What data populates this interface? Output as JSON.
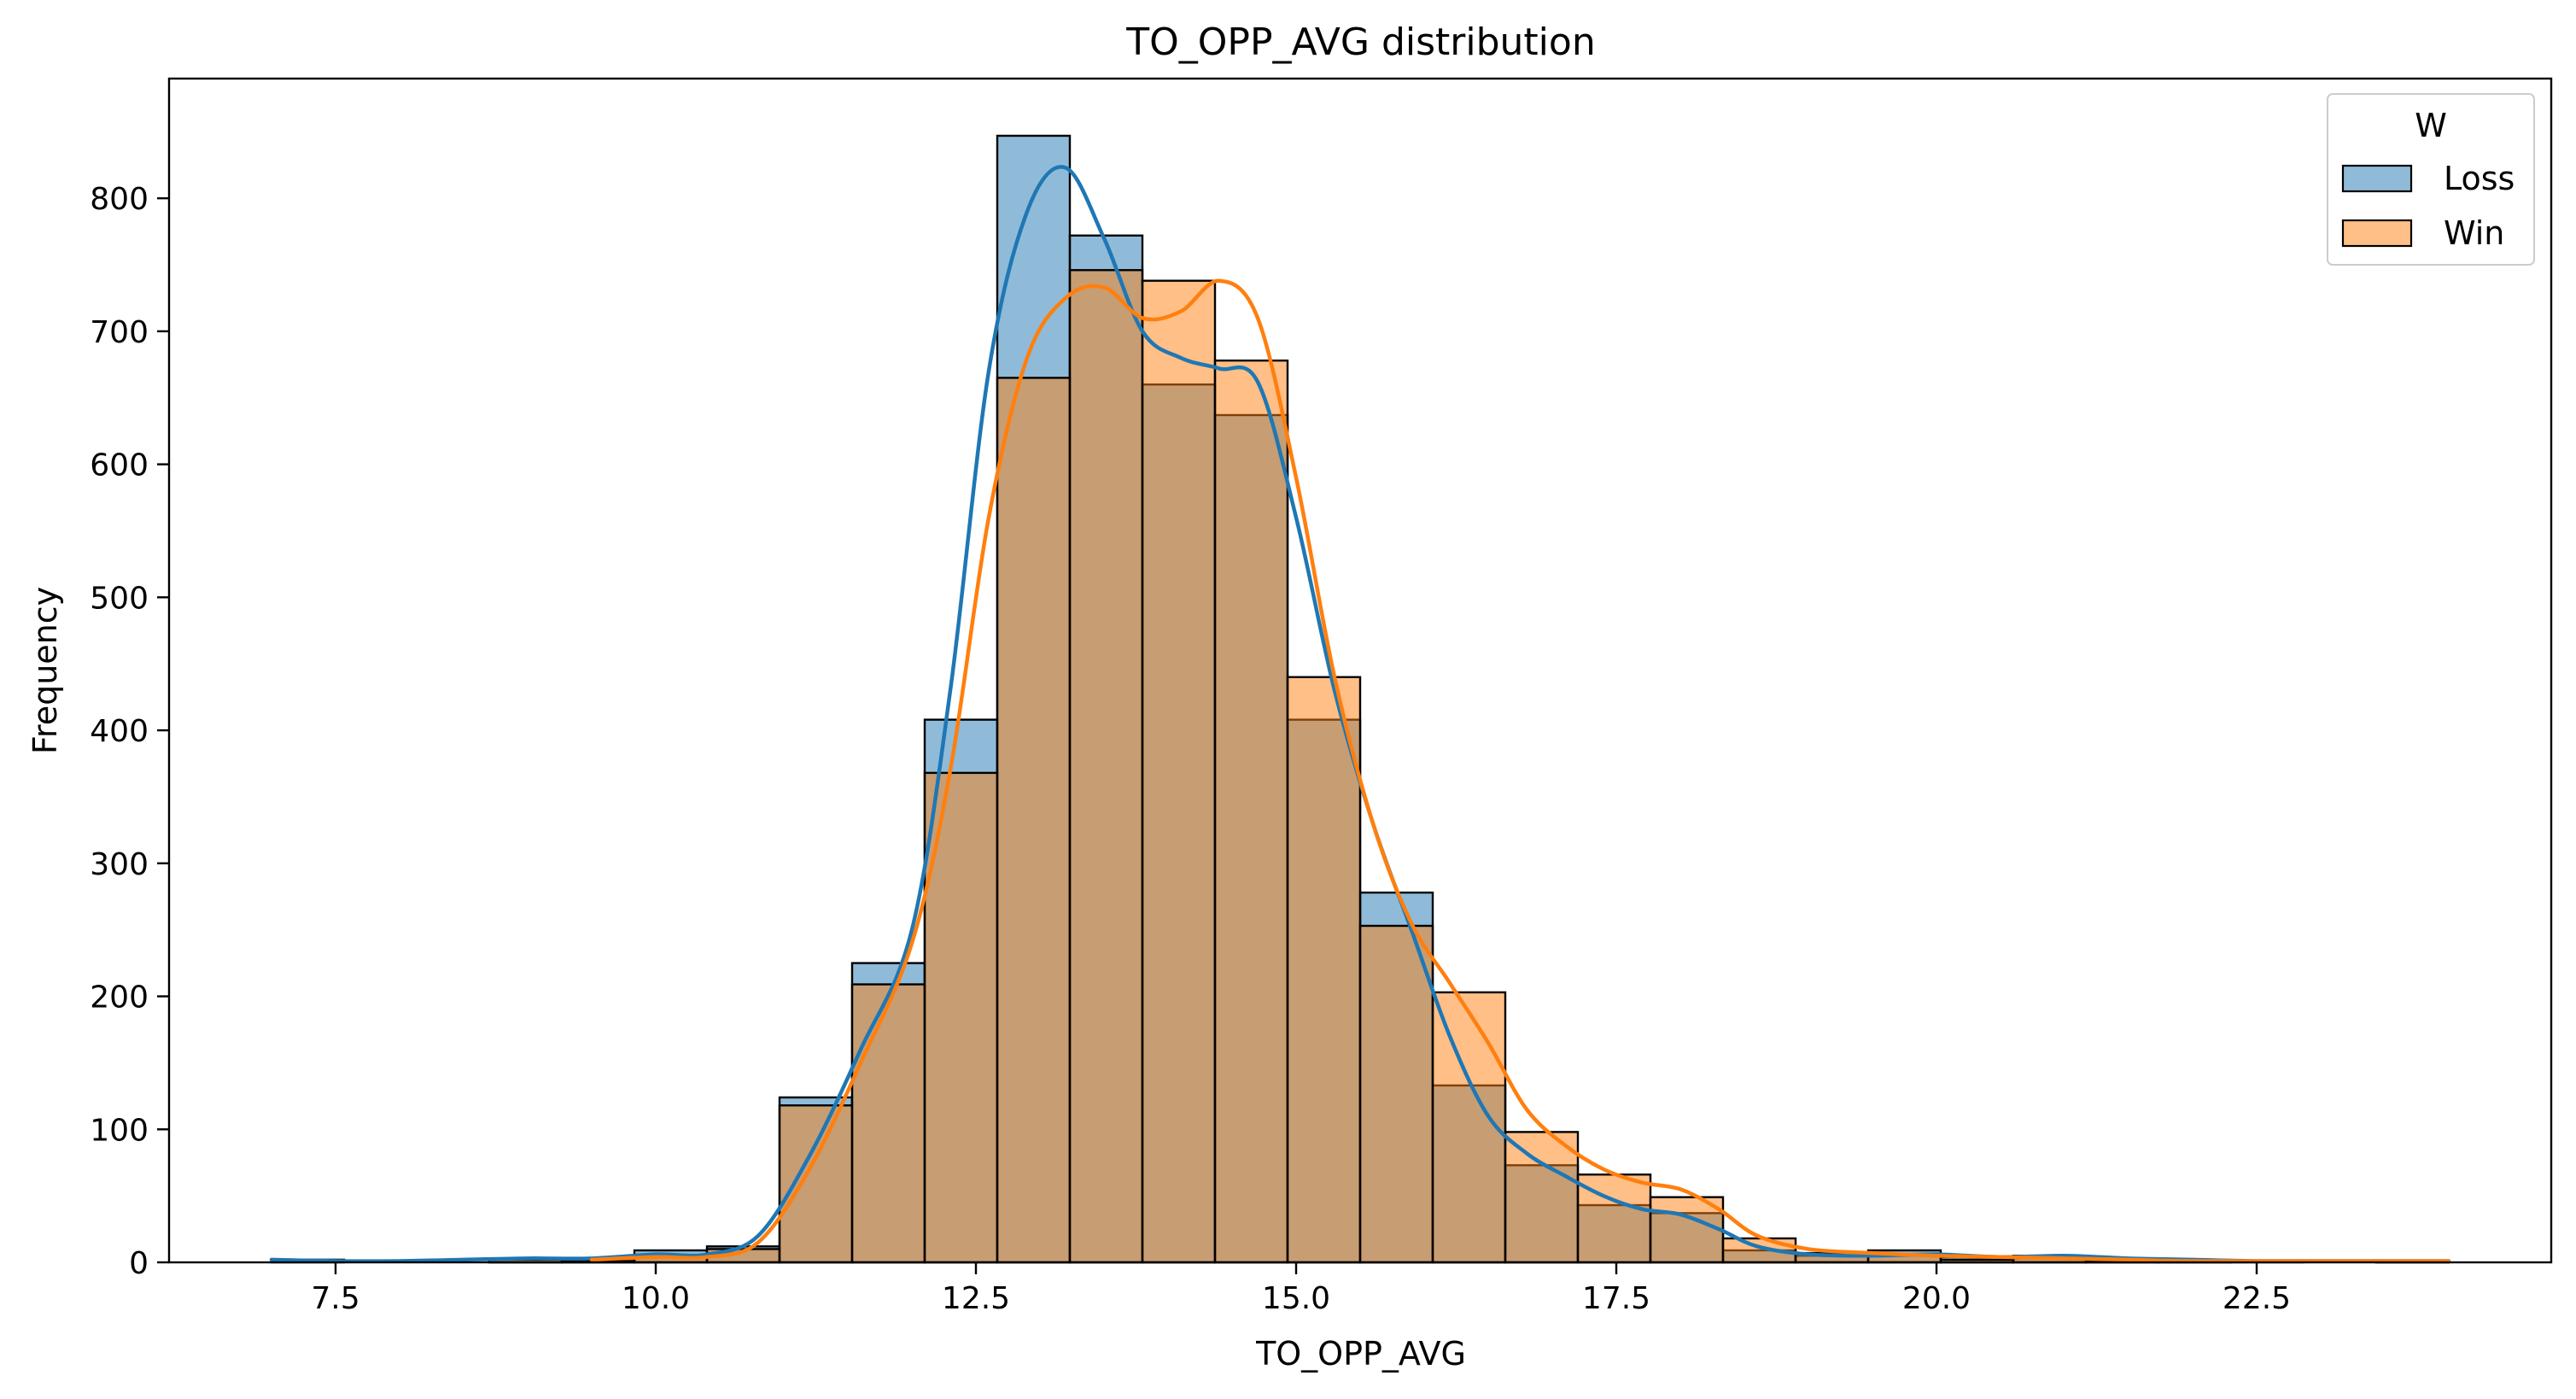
{
  "chart_data": {
    "type": "bar",
    "title": "TO_OPP_AVG distribution",
    "xlabel": "TO_OPP_AVG",
    "ylabel": "Frequency",
    "xlim": [
      6.2,
      24.8
    ],
    "ylim": [
      0,
      890
    ],
    "x_ticks": [
      7.5,
      10.0,
      12.5,
      15.0,
      17.5,
      20.0,
      22.5
    ],
    "x_tick_labels": [
      "7.5",
      "10.0",
      "12.5",
      "15.0",
      "17.5",
      "20.0",
      "22.5"
    ],
    "y_ticks": [
      0,
      100,
      200,
      300,
      400,
      500,
      600,
      700,
      800
    ],
    "y_tick_labels": [
      "0",
      "100",
      "200",
      "300",
      "400",
      "500",
      "600",
      "700",
      "800"
    ],
    "bin_edges": [
      7.0,
      7.5667,
      8.1333,
      8.7,
      9.2667,
      9.8333,
      10.4,
      10.9667,
      11.5333,
      12.1,
      12.6667,
      13.2333,
      13.8,
      14.3667,
      14.9333,
      15.5,
      16.0667,
      16.6333,
      17.2,
      17.7667,
      18.3333,
      18.9,
      19.4667,
      20.0333,
      20.6,
      21.1667,
      21.7333,
      22.3,
      22.8667,
      23.4333,
      24.0
    ],
    "legend": {
      "title": "W",
      "position": "upper right"
    },
    "series": [
      {
        "name": "Loss",
        "color": "#1f77b4",
        "values": [
          2,
          0,
          0,
          3,
          3,
          9,
          12,
          124,
          225,
          408,
          847,
          772,
          660,
          637,
          408,
          278,
          133,
          73,
          43,
          37,
          9,
          5,
          9,
          4,
          5,
          2,
          1,
          1,
          0,
          1
        ]
      },
      {
        "name": "Win",
        "color": "#ff7f0e",
        "values": [
          0,
          0,
          0,
          2,
          1,
          5,
          10,
          118,
          209,
          368,
          665,
          746,
          738,
          678,
          440,
          253,
          203,
          98,
          66,
          49,
          18,
          7,
          5,
          2,
          3,
          1,
          1,
          0,
          0,
          1
        ]
      }
    ],
    "kde": [
      {
        "name": "Loss",
        "color": "#1f77b4",
        "points": [
          [
            7.0,
            2
          ],
          [
            7.5,
            1
          ],
          [
            8.0,
            1
          ],
          [
            8.5,
            2
          ],
          [
            9.0,
            3
          ],
          [
            9.5,
            3
          ],
          [
            10.0,
            6
          ],
          [
            10.4,
            6
          ],
          [
            10.8,
            20
          ],
          [
            11.2,
            80
          ],
          [
            11.6,
            160
          ],
          [
            12.0,
            250
          ],
          [
            12.3,
            430
          ],
          [
            12.6,
            670
          ],
          [
            12.9,
            790
          ],
          [
            13.2,
            823
          ],
          [
            13.5,
            770
          ],
          [
            13.8,
            700
          ],
          [
            14.1,
            680
          ],
          [
            14.4,
            672
          ],
          [
            14.7,
            662
          ],
          [
            15.0,
            560
          ],
          [
            15.3,
            430
          ],
          [
            15.6,
            330
          ],
          [
            15.9,
            250
          ],
          [
            16.2,
            170
          ],
          [
            16.5,
            110
          ],
          [
            16.8,
            82
          ],
          [
            17.1,
            65
          ],
          [
            17.4,
            50
          ],
          [
            17.7,
            40
          ],
          [
            18.0,
            36
          ],
          [
            18.3,
            25
          ],
          [
            18.6,
            12
          ],
          [
            19.0,
            6
          ],
          [
            19.5,
            5
          ],
          [
            20.0,
            6
          ],
          [
            20.5,
            4
          ],
          [
            21.0,
            5
          ],
          [
            21.5,
            3
          ],
          [
            22.0,
            2
          ],
          [
            22.5,
            1
          ],
          [
            23.0,
            1
          ],
          [
            24.0,
            1
          ]
        ]
      },
      {
        "name": "Win",
        "color": "#ff7f0e",
        "points": [
          [
            9.5,
            2
          ],
          [
            10.0,
            4
          ],
          [
            10.4,
            4
          ],
          [
            10.8,
            15
          ],
          [
            11.2,
            70
          ],
          [
            11.6,
            150
          ],
          [
            12.0,
            240
          ],
          [
            12.3,
            370
          ],
          [
            12.6,
            560
          ],
          [
            12.9,
            680
          ],
          [
            13.2,
            725
          ],
          [
            13.5,
            733
          ],
          [
            13.8,
            710
          ],
          [
            14.1,
            715
          ],
          [
            14.4,
            738
          ],
          [
            14.7,
            710
          ],
          [
            15.0,
            590
          ],
          [
            15.3,
            440
          ],
          [
            15.6,
            330
          ],
          [
            15.9,
            255
          ],
          [
            16.2,
            210
          ],
          [
            16.5,
            165
          ],
          [
            16.8,
            115
          ],
          [
            17.1,
            88
          ],
          [
            17.4,
            70
          ],
          [
            17.7,
            60
          ],
          [
            18.0,
            55
          ],
          [
            18.3,
            40
          ],
          [
            18.6,
            20
          ],
          [
            19.0,
            10
          ],
          [
            19.5,
            7
          ],
          [
            20.0,
            5
          ],
          [
            20.5,
            4
          ],
          [
            21.0,
            3
          ],
          [
            21.5,
            2
          ],
          [
            22.0,
            1
          ],
          [
            23.0,
            1
          ],
          [
            24.0,
            1
          ]
        ]
      }
    ]
  }
}
